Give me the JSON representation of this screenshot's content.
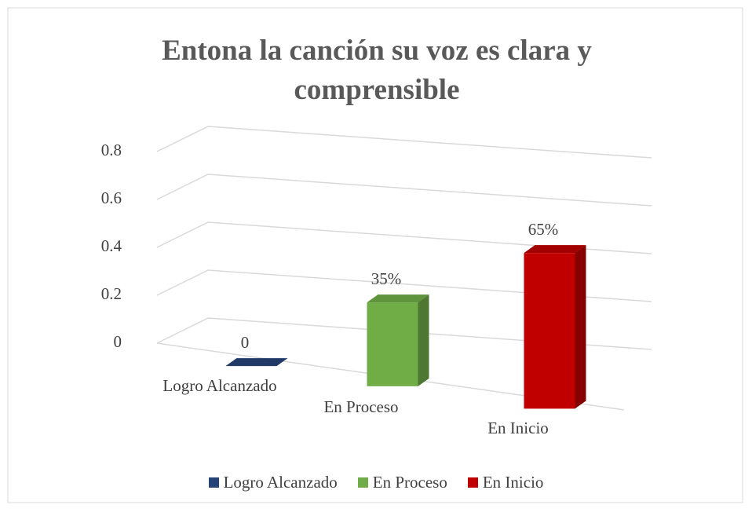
{
  "chart_data": {
    "type": "bar3d",
    "title": "Entona la canción su voz es clara y comprensible",
    "categories": [
      "Logro Alcanzado",
      "En Proceso",
      "En Inicio"
    ],
    "values": [
      0,
      0.35,
      0.65
    ],
    "value_labels": [
      "0",
      "35%",
      "65%"
    ],
    "colors": [
      "#264478",
      "#70ad47",
      "#c00000"
    ],
    "ylim": [
      0,
      0.8
    ],
    "yticks": [
      0,
      0.2,
      0.4,
      0.6,
      0.8
    ],
    "grid": true,
    "legend": "bottom"
  }
}
